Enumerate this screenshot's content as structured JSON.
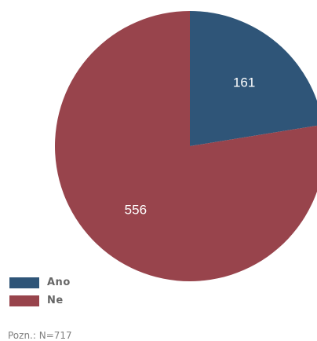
{
  "chart_data": {
    "type": "pie",
    "slices": [
      {
        "name": "Ano",
        "value": 161,
        "color": "#2f5578"
      },
      {
        "name": "Ne",
        "value": 556,
        "color": "#98444c"
      }
    ],
    "legend": "bottom-left",
    "note": "Pozn.: N=717"
  }
}
